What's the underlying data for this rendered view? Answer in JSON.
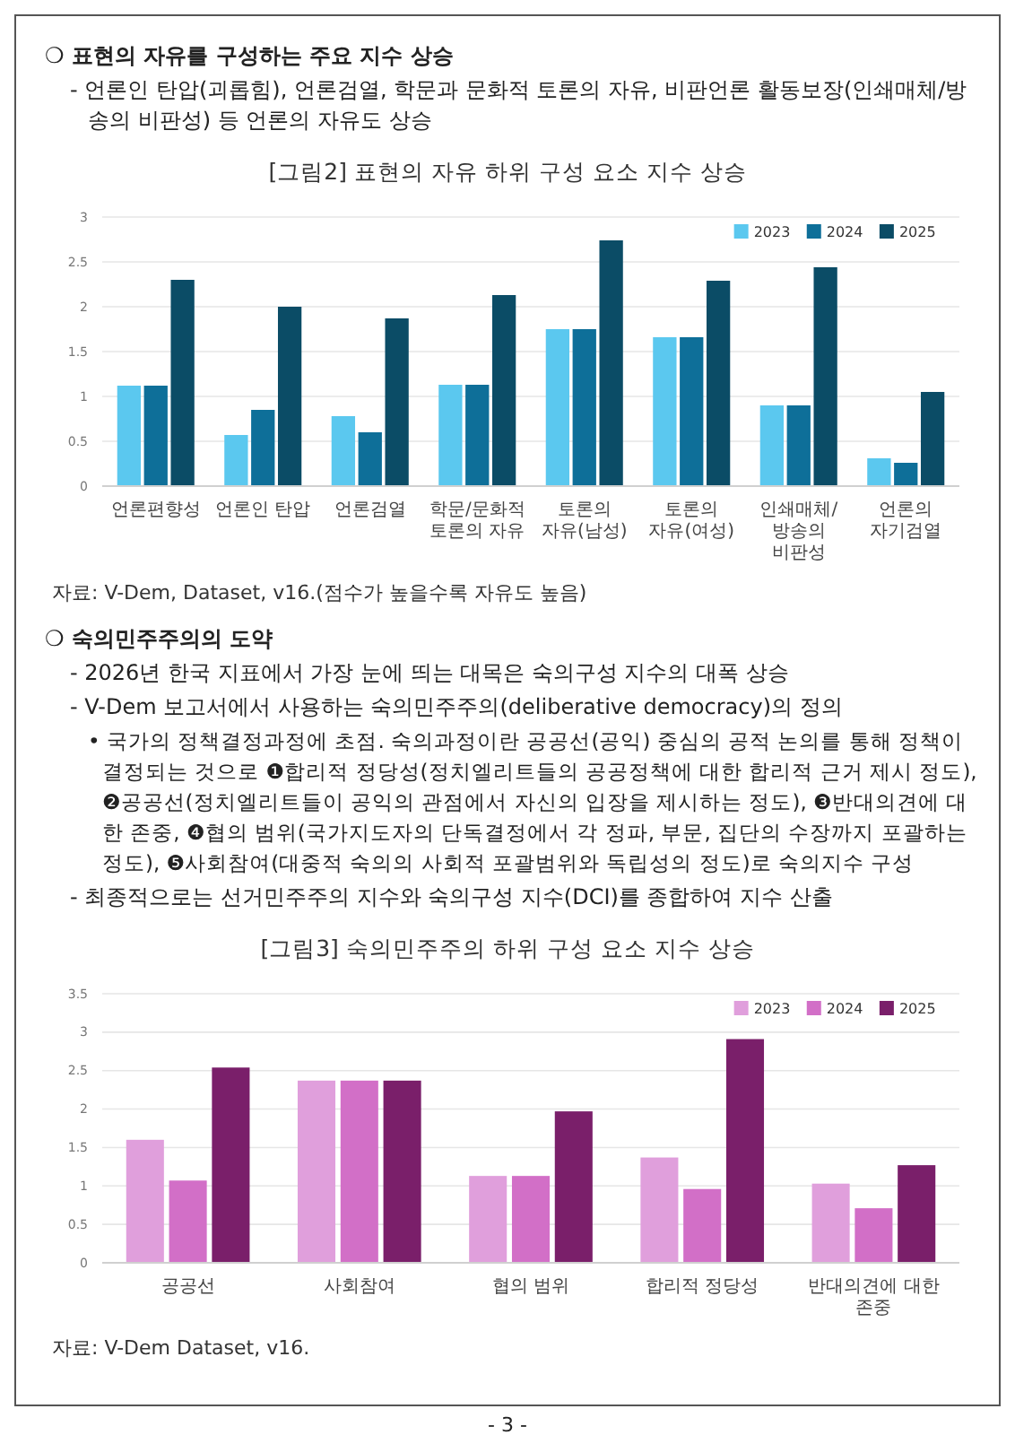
{
  "chart_data": [
    {
      "type": "bar",
      "title": "[그림2] 표현의 자유 하위 구성 요소 지수 상승",
      "annotations": [
        "❍ 표현의 자유를 구성하는 주요 지수 상승",
        "- 언론인 탄압(괴롭힘), 언론검열, 학문과 문화적 토론의 자유, 비판언론 활동보장(인쇄매체/방송의 비판성) 등 언론의 자유도 상승",
        "자료: V-Dem, Dataset, v16.(점수가 높을수록 자유도 높음)"
      ],
      "categories": [
        "언론편향성",
        "언론인 탄압",
        "언론검열",
        "학문/문화적 토론의 자유",
        "토론의 자유(남성)",
        "토론의 자유(여성)",
        "인쇄매체/방송의 비판성",
        "언론의 자기검열"
      ],
      "series": [
        {
          "name": "2023",
          "color": "#5bc8ef",
          "values": [
            1.12,
            0.57,
            0.78,
            1.13,
            1.75,
            1.66,
            0.9,
            0.31
          ]
        },
        {
          "name": "2024",
          "color": "#0e6f99",
          "values": [
            1.12,
            0.85,
            0.6,
            1.13,
            1.75,
            1.66,
            0.9,
            0.26
          ]
        },
        {
          "name": "2025",
          "color": "#0b4c66",
          "values": [
            2.3,
            2.0,
            1.87,
            2.13,
            2.74,
            2.29,
            2.44,
            1.05
          ]
        }
      ],
      "ylim": [
        0,
        3
      ],
      "yticks": [
        0,
        0.5,
        1,
        1.5,
        2,
        2.5,
        3
      ],
      "grid": "y",
      "legend": "top right"
    },
    {
      "type": "bar",
      "title": "[그림3] 숙의민주주의 하위 구성 요소 지수 상승",
      "annotations": [
        "❍ 숙의민주주의의 도약",
        "- 2026년 한국 지표에서 가장 눈에 띄는 대목은 숙의구성 지수의 대폭 상승",
        "- V-Dem 보고서에서 사용하는 숙의민주주의(deliberative democracy)의 정의",
        "• 국가의 정책결정과정에 초점. 숙의과정이란 공공선(공익) 중심의 공적 논의를 통해 정책이 결정되는 것으로 ❶합리적 정당성(정치엘리트들의 공공정책에 대한 합리적 근거 제시 정도), ❷공공선(정치엘리트들이 공익의 관점에서 자신의 입장을 제시하는 정도), ❸반대의견에 대한 존중, ❹협의 범위(국가지도자의 단독결정에서 각 정파, 부문, 집단의 수장까지 포괄하는 정도), ❺사회참여(대중적 숙의의 사회적 포괄범위와 독립성의 정도)로 숙의지수 구성",
        "- 최종적으로는 선거민주주의 지수와 숙의구성 지수(DCI)를 종합하여 지수 산출",
        "자료: V-Dem Dataset, v16.",
        "- 3 -"
      ],
      "categories": [
        "공공선",
        "사회참여",
        "협의 범위",
        "합리적 정당성",
        "반대의견에 대한 존중"
      ],
      "series": [
        {
          "name": "2023",
          "color": "#e09fdc",
          "values": [
            1.6,
            2.37,
            1.13,
            1.37,
            1.03
          ]
        },
        {
          "name": "2024",
          "color": "#d26fc7",
          "values": [
            1.07,
            2.37,
            1.13,
            0.96,
            0.71
          ]
        },
        {
          "name": "2025",
          "color": "#7a1f6a",
          "values": [
            2.54,
            2.37,
            1.97,
            2.91,
            1.27
          ]
        }
      ],
      "ylim": [
        0,
        3.5
      ],
      "yticks": [
        0,
        0.5,
        1,
        1.5,
        2,
        2.5,
        3,
        3.5
      ],
      "grid": "y",
      "legend": "top right"
    }
  ]
}
